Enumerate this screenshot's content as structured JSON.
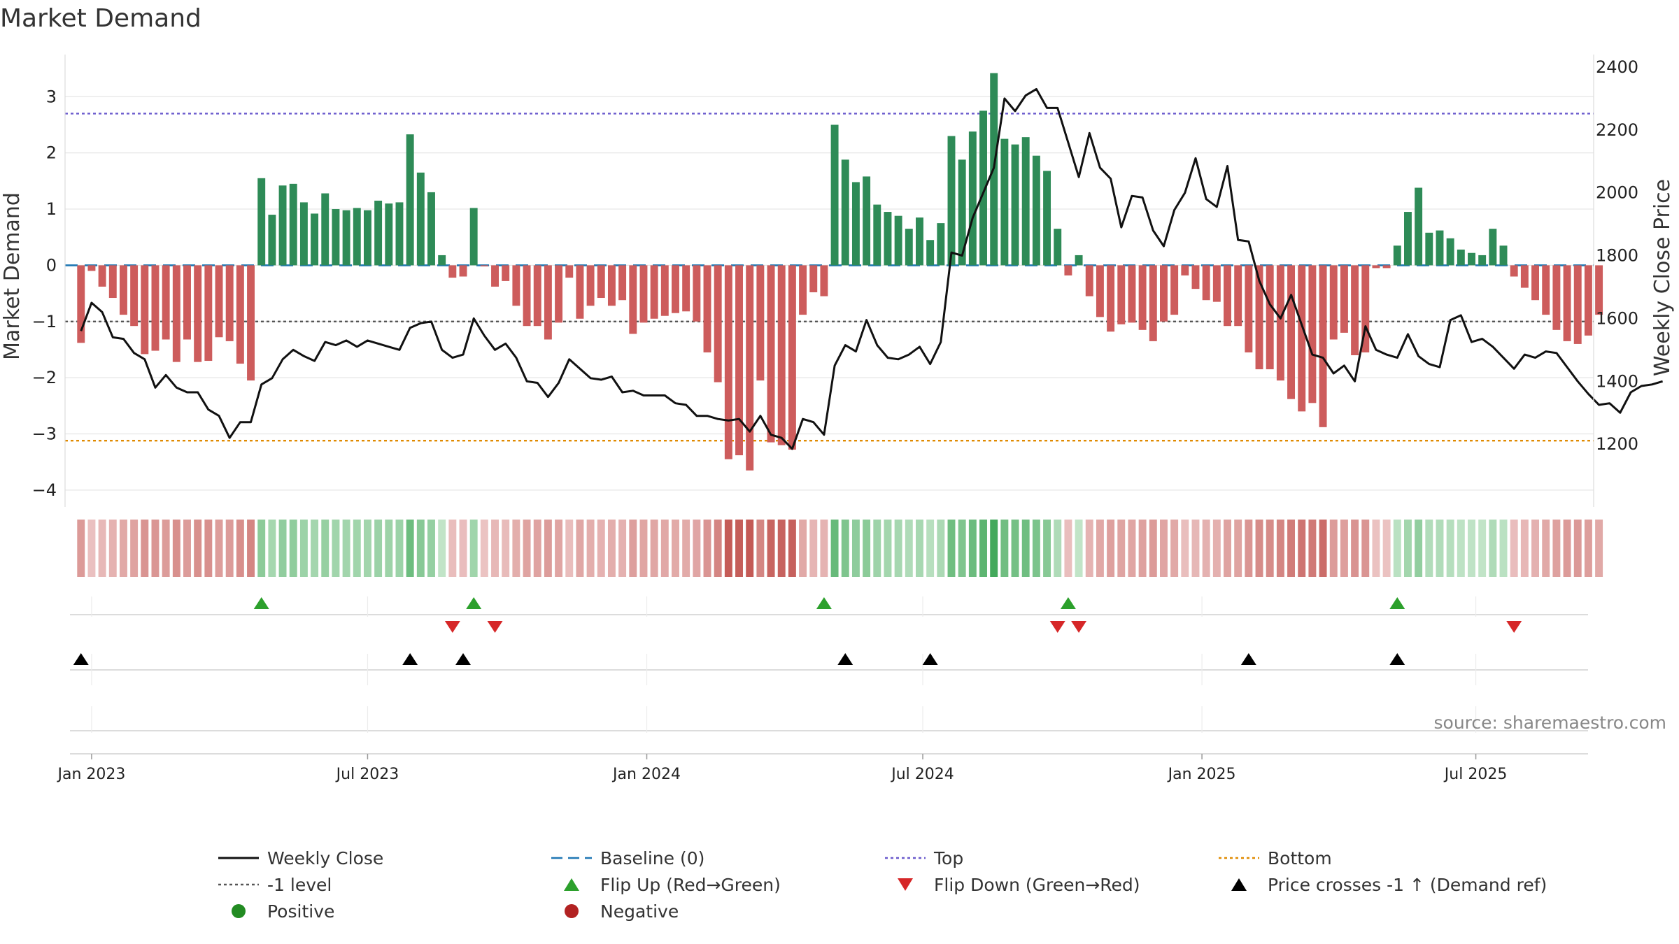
{
  "chart_data": {
    "type": "bar",
    "title": "Market Demand",
    "ylabel_left": "Market Demand",
    "ylabel_right": "Weekly Close Price",
    "ylim_left": [
      -4.3,
      3.75
    ],
    "ylim_right": [
      1000,
      2440
    ],
    "yticks_left": [
      3,
      2,
      1,
      0,
      -1,
      -2,
      -3,
      -4
    ],
    "ytick_labels_left": [
      "3",
      "2",
      "1",
      "0",
      "−1",
      "−2",
      "−3",
      "−4"
    ],
    "yticks_right": [
      2400,
      2200,
      2000,
      1800,
      1600,
      1400,
      1200
    ],
    "ytick_labels_right": [
      "2400",
      "2200",
      "2000",
      "1800",
      "1600",
      "1400",
      "1200"
    ],
    "x_week_range": [
      -1.5,
      142.5
    ],
    "x_ticks": [
      {
        "label": "Jan 2023",
        "week": 1
      },
      {
        "label": "Jul 2023",
        "week": 27
      },
      {
        "label": "Jan 2024",
        "week": 53.3
      },
      {
        "label": "Jul 2024",
        "week": 79.3
      },
      {
        "label": "Jan 2025",
        "week": 105.6
      },
      {
        "label": "Jul 2025",
        "week": 131.4
      }
    ],
    "reference_lines": {
      "top": 2.7,
      "bottom": -3.12,
      "minus_one": -1,
      "baseline": 0
    },
    "demand": [
      -1.38,
      -0.1,
      -0.38,
      -0.58,
      -0.88,
      -1.08,
      -1.58,
      -1.52,
      -1.32,
      -1.72,
      -1.32,
      -1.72,
      -1.7,
      -1.28,
      -1.35,
      -1.75,
      -2.05,
      1.55,
      0.9,
      1.42,
      1.45,
      1.12,
      0.92,
      1.28,
      1.0,
      0.98,
      1.02,
      0.98,
      1.15,
      1.1,
      1.12,
      2.33,
      1.65,
      1.3,
      0.18,
      -0.22,
      -0.2,
      1.02,
      -0.02,
      -0.38,
      -0.28,
      -0.72,
      -1.08,
      -1.08,
      -1.32,
      -1.02,
      -0.22,
      -0.95,
      -0.72,
      -0.58,
      -0.72,
      -0.62,
      -1.22,
      -1.02,
      -0.95,
      -0.9,
      -0.85,
      -0.82,
      -1.0,
      -1.55,
      -2.08,
      -3.45,
      -3.38,
      -3.65,
      -2.05,
      -3.15,
      -3.2,
      -3.28,
      -0.88,
      -0.48,
      -0.55,
      2.5,
      1.88,
      1.48,
      1.58,
      1.08,
      0.95,
      0.88,
      0.65,
      0.85,
      0.45,
      0.75,
      2.3,
      1.88,
      2.38,
      2.75,
      3.42,
      2.25,
      2.15,
      2.28,
      1.95,
      1.68,
      0.65,
      -0.18,
      0.18,
      -0.55,
      -0.92,
      -1.18,
      -1.05,
      -1.02,
      -1.15,
      -1.35,
      -1.0,
      -0.88,
      -0.18,
      -0.42,
      -0.62,
      -0.65,
      -1.08,
      -1.08,
      -1.55,
      -1.85,
      -1.85,
      -2.05,
      -2.38,
      -2.6,
      -2.45,
      -2.88,
      -1.32,
      -1.2,
      -1.6,
      -1.55,
      -0.05,
      -0.05,
      0.35,
      0.95,
      1.38,
      0.58,
      0.62,
      0.48,
      0.28,
      0.22,
      0.18,
      0.65,
      0.35,
      -0.2,
      -0.4,
      -0.62,
      -0.88,
      -1.15,
      -1.35,
      -1.4,
      -1.25,
      -0.88
    ],
    "weekly_close": [
      1560,
      1650,
      1620,
      1540,
      1535,
      1490,
      1470,
      1380,
      1420,
      1380,
      1365,
      1365,
      1310,
      1290,
      1220,
      1270,
      1270,
      1390,
      1410,
      1470,
      1500,
      1480,
      1465,
      1525,
      1515,
      1530,
      1510,
      1530,
      1520,
      1510,
      1500,
      1570,
      1585,
      1590,
      1500,
      1475,
      1485,
      1600,
      1545,
      1500,
      1520,
      1475,
      1400,
      1395,
      1350,
      1395,
      1470,
      1440,
      1410,
      1405,
      1415,
      1365,
      1370,
      1355,
      1355,
      1355,
      1330,
      1325,
      1290,
      1290,
      1280,
      1275,
      1280,
      1240,
      1290,
      1230,
      1220,
      1185,
      1280,
      1270,
      1230,
      1450,
      1515,
      1495,
      1595,
      1515,
      1475,
      1470,
      1485,
      1510,
      1455,
      1525,
      1810,
      1800,
      1920,
      2000,
      2080,
      2300,
      2260,
      2310,
      2330,
      2270,
      2270,
      2160,
      2050,
      2190,
      2080,
      2045,
      1890,
      1990,
      1985,
      1880,
      1830,
      1945,
      2000,
      2110,
      1980,
      1955,
      2085,
      1850,
      1845,
      1720,
      1645,
      1600,
      1675,
      1580,
      1485,
      1475,
      1425,
      1450,
      1400,
      1575,
      1500,
      1485,
      1475,
      1550,
      1480,
      1455,
      1445,
      1595,
      1610,
      1525,
      1535,
      1510,
      1475,
      1440,
      1485,
      1475,
      1495,
      1490,
      1445,
      1400,
      1360,
      1325,
      1330,
      1300,
      1365,
      1385,
      1390,
      1400
    ],
    "flip_up_weeks": [
      17,
      37,
      70,
      93,
      124
    ],
    "flip_down_weeks": [
      35,
      39,
      92,
      94,
      135
    ],
    "price_cross_weeks": [
      0,
      31,
      36,
      72,
      80,
      110,
      124
    ],
    "colors": {
      "positive": "#2e8b57",
      "negative": "#cd5c5c",
      "close": "#111111",
      "baseline": "#1f77b4",
      "top": "#6a5acd",
      "bottom": "#e08a00",
      "minus_one": "#555555",
      "flip_up": "#2ca02c",
      "flip_down": "#d62728",
      "price_cross": "#000000",
      "positive_dot": "#228b22",
      "negative_dot": "#b22222"
    },
    "source": "source: sharemaestro.com",
    "legend": [
      {
        "key": "close",
        "label": "Weekly Close",
        "style": "solid"
      },
      {
        "key": "baseline",
        "label": "Baseline (0)",
        "style": "dashed"
      },
      {
        "key": "top",
        "label": "Top",
        "style": "dotted"
      },
      {
        "key": "bottom",
        "label": "Bottom",
        "style": "dotted"
      },
      {
        "key": "minus_one",
        "label": "-1 level",
        "style": "dotted"
      },
      {
        "key": "flip_up",
        "label": "Flip Up (Red→Green)",
        "style": "triangle-up"
      },
      {
        "key": "flip_down",
        "label": "Flip Down (Green→Red)",
        "style": "triangle-down"
      },
      {
        "key": "price_cross",
        "label": "Price crosses -1 ↑ (Demand ref)",
        "style": "triangle-up"
      },
      {
        "key": "positive_dot",
        "label": "Positive",
        "style": "dot"
      },
      {
        "key": "negative_dot",
        "label": "Negative",
        "style": "dot"
      }
    ]
  }
}
